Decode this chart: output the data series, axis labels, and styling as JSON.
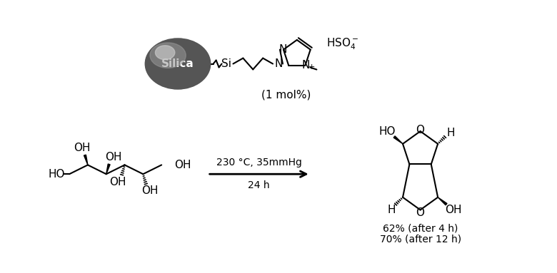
{
  "background_color": "#ffffff",
  "figsize": [
    7.8,
    3.83
  ],
  "dpi": 100,
  "catalyst_label": "(1 mol%)",
  "arrow_label_top": "230 °C, 35mmHg",
  "arrow_label_bottom": "24 h",
  "yield_line1": "62% (after 4 h)",
  "yield_line2": "70% (after 12 h)",
  "silica_text": "Silica",
  "font_size_main": 11,
  "line_color": "#000000"
}
